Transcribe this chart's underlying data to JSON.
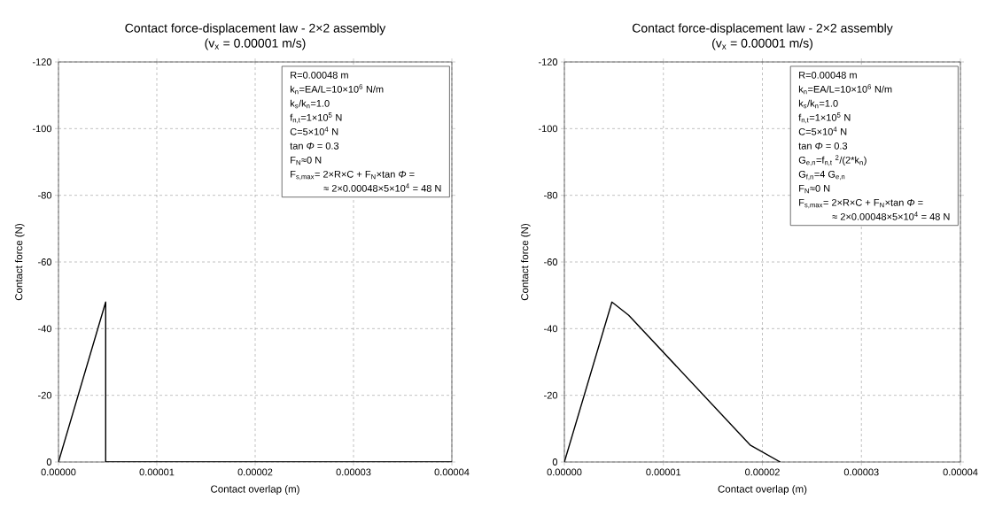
{
  "chart_data": [
    {
      "type": "line",
      "title": "Contact force-displacement law - 2×2 assembly",
      "subtitle": "(v$_{x}$ = 0.00001 m/s)",
      "xlabel": "Contact overlap (m)",
      "ylabel": "Contact force (N)",
      "x": [
        0,
        4.8e-06,
        4.8e-06,
        4e-05
      ],
      "values": [
        0,
        -48,
        0,
        0
      ],
      "color": "#000000",
      "xlim": [
        0,
        4e-05
      ],
      "ylim": [
        0,
        -120
      ],
      "xticks": [
        {
          "value": 0,
          "label": "0.00000"
        },
        {
          "value": 1e-05,
          "label": "0.00001"
        },
        {
          "value": 2e-05,
          "label": "0.00002"
        },
        {
          "value": 3e-05,
          "label": "0.00003"
        },
        {
          "value": 4e-05,
          "label": "0.00004"
        }
      ],
      "yticks": [
        0,
        -20,
        -40,
        -60,
        -80,
        -100,
        -120
      ],
      "grid": true,
      "marker": "none",
      "line_style": "solid",
      "annotations": [
        "R=0.00048 m",
        "k$_{n}$=EA/L=10×10$^{6}$ N/m",
        "k$_{s}$/k$_{n}$=1.0",
        "f$_{n,t}$=1×10$^{5}$ N",
        "C=5×10$^{4}$ N",
        "tan *Φ* = 0.3",
        "F$_{N}$≈0 N",
        "F$_{s,max}$= 2×R×C + F$_{N}$×tan *Φ* =",
        "≈ 2×0.00048×5×10$^{4}$ = 48 N"
      ]
    },
    {
      "type": "line",
      "title": "Contact force-displacement law - 2×2 assembly",
      "subtitle": "(v$_{x}$ = 0.00001 m/s)",
      "xlabel": "Contact overlap (m)",
      "ylabel": "Contact force (N)",
      "x": [
        0,
        4.8e-06,
        6.5e-06,
        1.88e-05,
        2.18e-05
      ],
      "values": [
        0,
        -48,
        -44,
        -5,
        0
      ],
      "color": "#000000",
      "xlim": [
        0,
        4e-05
      ],
      "ylim": [
        0,
        -120
      ],
      "xticks": [
        {
          "value": 0,
          "label": "0.00000"
        },
        {
          "value": 1e-05,
          "label": "0.00001"
        },
        {
          "value": 2e-05,
          "label": "0.00002"
        },
        {
          "value": 3e-05,
          "label": "0.00003"
        },
        {
          "value": 4e-05,
          "label": "0.00004"
        }
      ],
      "yticks": [
        0,
        -20,
        -40,
        -60,
        -80,
        -100,
        -120
      ],
      "grid": true,
      "marker": "none",
      "line_style": "solid",
      "annotations": [
        "R=0.00048 m",
        "k$_{n}$=EA/L=10×10$^{6}$ N/m",
        "k$_{s}$/k$_{n}$=1.0",
        "f$_{n,t}$=1×10$^{5}$ N",
        "C=5×10$^{4}$ N",
        "tan *Φ* = 0.3",
        "G$_{e,n}$=f$_{n,t}$ $^{2}$/(2*k$_{n}$)",
        "G$_{f,n}$=4 G$_{e,n}$",
        "F$_{N}$≈0 N",
        "F$_{s,max}$= 2×R×C + F$_{N}$×tan *Φ* =",
        "≈ 2×0.00048×5×10$^{4}$ = 48 N"
      ]
    }
  ]
}
